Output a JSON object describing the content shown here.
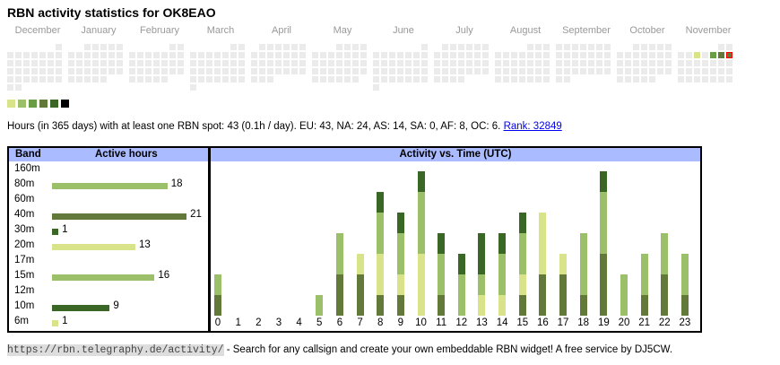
{
  "title": "RBN activity statistics for OK8EAO",
  "calendar": {
    "months": [
      {
        "name": "December",
        "offset": 6,
        "days": 31
      },
      {
        "name": "January",
        "offset": 2,
        "days": 31
      },
      {
        "name": "February",
        "offset": 5,
        "days": 28
      },
      {
        "name": "March",
        "offset": 5,
        "days": 31
      },
      {
        "name": "April",
        "offset": 1,
        "days": 30
      },
      {
        "name": "May",
        "offset": 3,
        "days": 31
      },
      {
        "name": "June",
        "offset": 6,
        "days": 30
      },
      {
        "name": "July",
        "offset": 1,
        "days": 31
      },
      {
        "name": "August",
        "offset": 4,
        "days": 31
      },
      {
        "name": "September",
        "offset": 0,
        "days": 30
      },
      {
        "name": "October",
        "offset": 2,
        "days": 31
      },
      {
        "name": "November",
        "offset": 5,
        "days": 30
      }
    ],
    "active": [
      {
        "month": 11,
        "day": 5,
        "level": 1
      },
      {
        "month": 11,
        "day": 7,
        "level": 3
      },
      {
        "month": 11,
        "day": 8,
        "level": 4
      },
      {
        "month": 11,
        "day": 9,
        "level": 4,
        "today": true
      }
    ],
    "empty_color": "#ebebeb",
    "legend_colors": [
      "#d9e38a",
      "#9cc06a",
      "#6a9e45",
      "#63793a",
      "#3a6626",
      "#000000"
    ],
    "today_border": "#ff0000"
  },
  "summary": {
    "text": "Hours (in 365 days) with at least one RBN spot: 43 (0.1h / day). EU: 43, NA: 24, AS: 14, SA: 0, AF: 8, OC: 6.",
    "rank": "Rank: 32849"
  },
  "band_table": {
    "header_band": "Band",
    "header_hours": "Active hours",
    "rows": [
      {
        "band": "160m",
        "hours": null,
        "color": ""
      },
      {
        "band": "80m",
        "hours": 18,
        "color": "#9cc06a"
      },
      {
        "band": "60m",
        "hours": null,
        "color": ""
      },
      {
        "band": "40m",
        "hours": 21,
        "color": "#63793a"
      },
      {
        "band": "30m",
        "hours": 1,
        "color": "#3a6626"
      },
      {
        "band": "20m",
        "hours": 13,
        "color": "#d9e38a"
      },
      {
        "band": "17m",
        "hours": null,
        "color": ""
      },
      {
        "band": "15m",
        "hours": 16,
        "color": "#9cc06a"
      },
      {
        "band": "12m",
        "hours": null,
        "color": ""
      },
      {
        "band": "10m",
        "hours": 9,
        "color": "#3a6626"
      },
      {
        "band": "6m",
        "hours": 1,
        "color": "#d9e38a"
      }
    ]
  },
  "chart_data": {
    "type": "bar",
    "stacked": true,
    "title": "Activity vs. Time (UTC)",
    "categories": [
      "0",
      "1",
      "2",
      "3",
      "4",
      "5",
      "6",
      "7",
      "8",
      "9",
      "10",
      "11",
      "12",
      "13",
      "14",
      "15",
      "16",
      "17",
      "18",
      "19",
      "20",
      "21",
      "22",
      "23"
    ],
    "series": [
      {
        "color": "#63793a",
        "values": [
          1,
          0,
          0,
          0,
          0,
          0,
          2,
          2,
          1,
          1,
          0,
          1,
          0,
          0,
          0,
          1,
          2,
          2,
          1,
          3,
          0,
          1,
          2,
          1
        ]
      },
      {
        "color": "#d9e38a",
        "values": [
          0,
          0,
          0,
          0,
          0,
          0,
          0,
          1,
          2,
          1,
          3,
          0,
          0,
          1,
          1,
          1,
          3,
          1,
          0,
          0,
          0,
          0,
          0,
          0
        ]
      },
      {
        "color": "#9cc06a",
        "values": [
          1,
          0,
          0,
          0,
          0,
          1,
          2,
          0,
          2,
          2,
          3,
          2,
          2,
          1,
          2,
          2,
          0,
          0,
          3,
          3,
          2,
          2,
          2,
          2
        ]
      },
      {
        "color": "#3a6626",
        "values": [
          0,
          0,
          0,
          0,
          0,
          0,
          0,
          0,
          1,
          1,
          1,
          1,
          1,
          2,
          1,
          1,
          0,
          0,
          0,
          1,
          0,
          0,
          0,
          0
        ]
      }
    ]
  },
  "footer": {
    "url": "https://rbn.telegraphy.de/activity/",
    "text": " - Search for any callsign and create your own embeddable RBN widget! A free service by DJ5CW."
  }
}
